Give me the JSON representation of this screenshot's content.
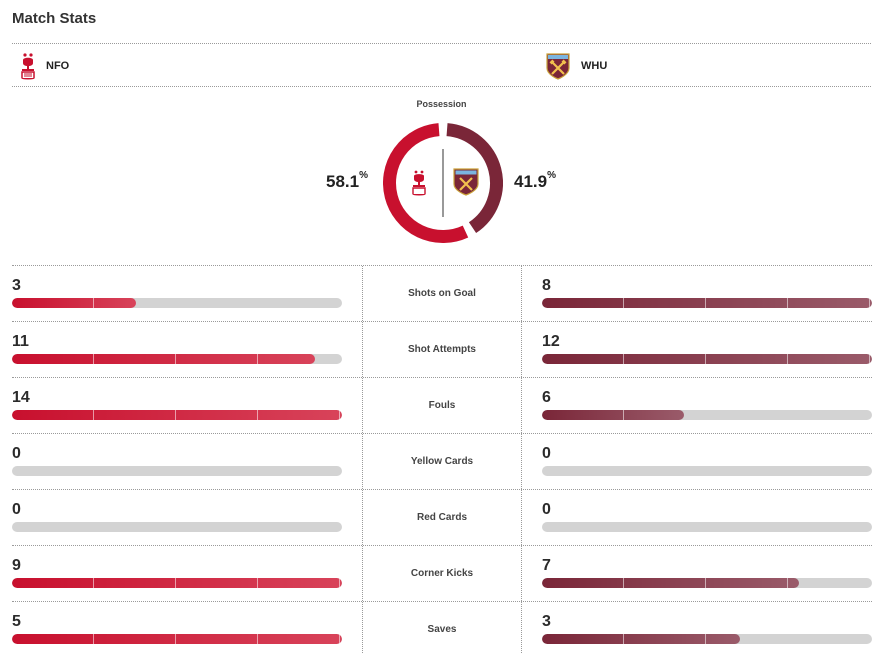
{
  "title": "Match Stats",
  "teams": {
    "home": {
      "abbr": "NFO",
      "color": "#c8102e"
    },
    "away": {
      "abbr": "WHU",
      "color": "#7a2638"
    }
  },
  "possession": {
    "label": "Possession",
    "home_value": "58.1",
    "away_value": "41.9",
    "unit": "%"
  },
  "stats": [
    {
      "label": "Shots on Goal",
      "home": "3",
      "away": "8",
      "home_fill": 0.375,
      "away_fill": 1.0
    },
    {
      "label": "Shot Attempts",
      "home": "11",
      "away": "12",
      "home_fill": 0.917,
      "away_fill": 1.0
    },
    {
      "label": "Fouls",
      "home": "14",
      "away": "6",
      "home_fill": 1.0,
      "away_fill": 0.429
    },
    {
      "label": "Yellow Cards",
      "home": "0",
      "away": "0",
      "home_fill": 0,
      "away_fill": 0
    },
    {
      "label": "Red Cards",
      "home": "0",
      "away": "0",
      "home_fill": 0,
      "away_fill": 0
    },
    {
      "label": "Corner Kicks",
      "home": "9",
      "away": "7",
      "home_fill": 1.0,
      "away_fill": 0.778
    },
    {
      "label": "Saves",
      "home": "5",
      "away": "3",
      "home_fill": 1.0,
      "away_fill": 0.6
    }
  ]
}
